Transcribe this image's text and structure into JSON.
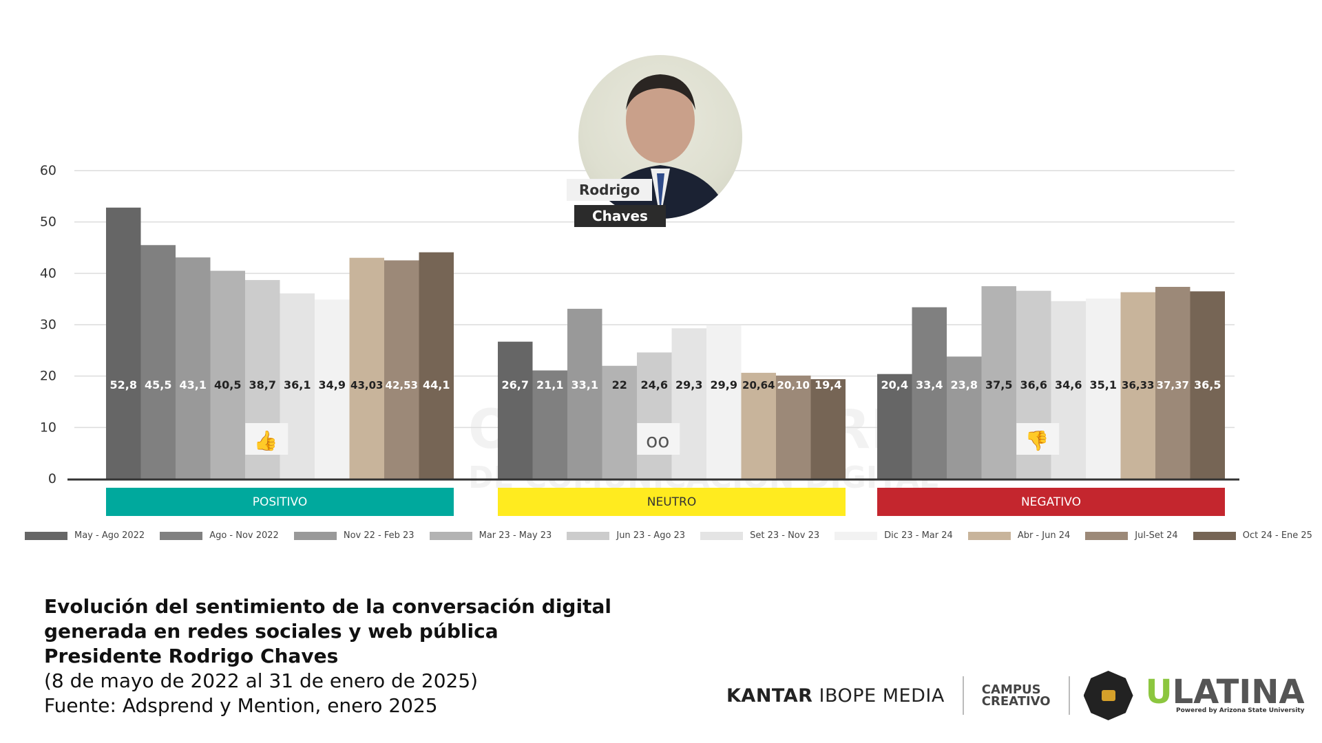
{
  "person": {
    "first": "Rodrigo",
    "last": "Chaves"
  },
  "watermark": {
    "line1": "OBSERVATORIO",
    "line2": "DE COMUNICACIÓN DIGITAL"
  },
  "chart_data": {
    "type": "bar",
    "ylim": [
      0,
      60
    ],
    "yticks": [
      0,
      10,
      20,
      30,
      40,
      50,
      60
    ],
    "grid": true,
    "legend_position": "bottom",
    "series_names": [
      "May - Ago 2022",
      "Ago - Nov 2022",
      "Nov 22 - Feb 23",
      "Mar 23 - May 23",
      "Jun 23 - Ago 23",
      "Set 23 - Nov 23",
      "Dic 23 - Mar 24",
      "Abr - Jun 24",
      "Jul-Set 24",
      "Oct 24 - Ene 25"
    ],
    "series_colors": [
      "#666666",
      "#808080",
      "#999999",
      "#b3b3b3",
      "#cccccc",
      "#e4e4e4",
      "#f2f2f2",
      "#c8b49b",
      "#9c8978",
      "#766555"
    ],
    "groups": [
      {
        "name": "POSITIVO",
        "color": "#00a99d",
        "icon": "thumbs-up-icon",
        "values": [
          52.8,
          45.5,
          43.1,
          40.5,
          38.7,
          36.1,
          34.9,
          43.03,
          42.53,
          44.1
        ],
        "labels": [
          "52,8",
          "45,5",
          "43,1",
          "40,5",
          "38,7",
          "36,1",
          "34,9",
          "43,03",
          "42,53",
          "44,1"
        ]
      },
      {
        "name": "NEUTRO",
        "color": "#ffeb1f",
        "icon": "neutral-face-icon",
        "values": [
          26.7,
          21.1,
          33.1,
          22,
          24.6,
          29.3,
          29.9,
          20.64,
          20.1,
          19.4
        ],
        "labels": [
          "26,7",
          "21,1",
          "33,1",
          "22",
          "24,6",
          "29,3",
          "29,9",
          "20,64",
          "20,10",
          "19,4"
        ]
      },
      {
        "name": "NEGATIVO",
        "color": "#c4262e",
        "icon": "thumbs-down-icon",
        "values": [
          20.4,
          33.4,
          23.8,
          37.5,
          36.6,
          34.6,
          35.1,
          36.33,
          37.37,
          36.5
        ],
        "labels": [
          "20,4",
          "33,4",
          "23,8",
          "37,5",
          "36,6",
          "34,6",
          "35,1",
          "36,33",
          "37,37",
          "36,5"
        ]
      }
    ]
  },
  "caption": {
    "line1": "Evolución del sentimiento de la conversación digital",
    "line2": "generada en redes sociales y web pública",
    "line3": "Presidente Rodrigo Chaves",
    "line4": "(8 de mayo de 2022 al 31 de enero de 2025)",
    "line5": "Fuente: Adsprend y Mention, enero 2025"
  },
  "logos": {
    "kantar_a": "KANTAR",
    "kantar_b": "IBOPE MEDIA",
    "campus_a": "CAMPUS",
    "campus_b": "CREATIVO",
    "ulatina_u": "U",
    "ulatina_rest": "LATINA",
    "ulatina_sub": "Powered by Arizona State University"
  }
}
